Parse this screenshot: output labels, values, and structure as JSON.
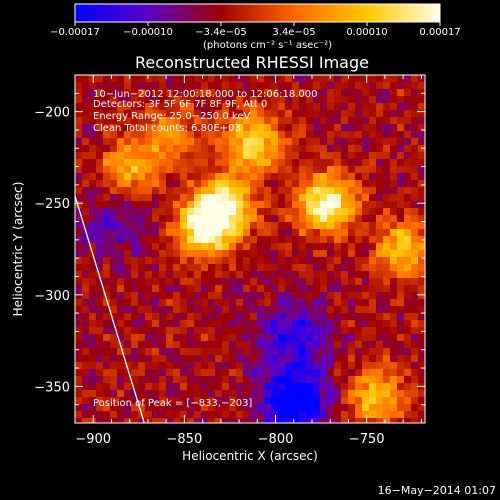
{
  "chart_data": {
    "type": "heatmap",
    "title": "Reconstructed RHESSI Image",
    "xlabel": "Heliocentric X (arcsec)",
    "ylabel": "Heliocentric Y (arcsec)",
    "xlim": [
      -910,
      -718
    ],
    "ylim": [
      -370,
      -180
    ],
    "xticks": [
      -900,
      -850,
      -800,
      -750
    ],
    "yticks": [
      -200,
      -250,
      -300,
      -350
    ],
    "x_tick_labels": [
      "−900",
      "−850",
      "−800",
      "−750"
    ],
    "y_tick_labels": [
      "−200",
      "−250",
      "−300",
      "−350"
    ],
    "colorbar": {
      "range": [
        -0.00017,
        0.00017
      ],
      "tick_labels": [
        "−0.00017",
        "−0.00010",
        "−3.4e−05",
        "3.4e−05",
        "0.00010",
        "0.00017"
      ],
      "unit_label": "(photons cm⁻² s⁻¹ asec⁻²)",
      "colormap": [
        "#0000ff",
        "#5a00c8",
        "#a00000",
        "#ff6600",
        "#ffc800",
        "#ffffe6"
      ]
    },
    "annotations": [
      "10−Jun−2012 12:00:18.000 to 12:06:18.000",
      "Detectors: 3F 5F 6F 7F 8F 9F, Att 0",
      "Energy Range: 25.0−250.0 keV",
      "Clean    Total counts: 6.80E+03",
      "Position of Peak = [−833,−203]"
    ],
    "peak": [
      -833,
      -203
    ],
    "sources": [
      {
        "x": -838,
        "y": -263,
        "intensity": 1.0
      },
      {
        "x": -827,
        "y": -250,
        "intensity": 0.75
      },
      {
        "x": -772,
        "y": -250,
        "intensity": 0.95
      },
      {
        "x": -812,
        "y": -217,
        "intensity": 0.75
      },
      {
        "x": -880,
        "y": -232,
        "intensity": 0.55
      },
      {
        "x": -730,
        "y": -275,
        "intensity": 0.6
      },
      {
        "x": -858,
        "y": -212,
        "intensity": 0.45
      },
      {
        "x": -745,
        "y": -355,
        "intensity": 0.6
      },
      {
        "x": -790,
        "y": -322,
        "intensity": -0.45
      },
      {
        "x": -790,
        "y": -358,
        "intensity": -0.8
      },
      {
        "x": -887,
        "y": -260,
        "intensity": -0.3
      }
    ],
    "limb_line": [
      [
        -910,
        -246
      ],
      [
        -872,
        -370
      ]
    ],
    "footer_timestamp": "16−May−2014 01:07"
  }
}
